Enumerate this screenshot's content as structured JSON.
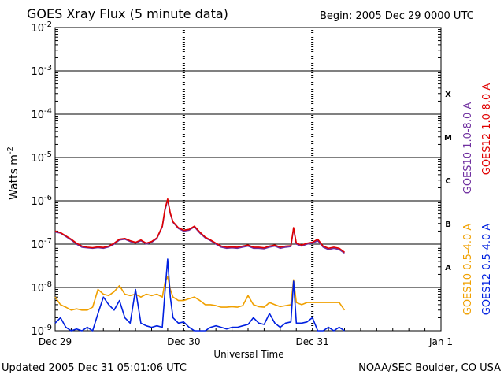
{
  "header": {
    "title": "GOES Xray Flux (5 minute data)",
    "begin": "Begin:  2005 Dec 29 0000 UTC"
  },
  "footer": {
    "updated": "Updated 2005 Dec 31 05:01:06 UTC",
    "credit": "NOAA/SEC Boulder, CO USA"
  },
  "colors": {
    "goes10_long": "#7030a0",
    "goes12_long": "#e00000",
    "goes10_short": "#f0a000",
    "goes12_short": "#0020e0",
    "grid": "#000000"
  },
  "chart_data": {
    "type": "line",
    "title": "GOES Xray Flux (5 minute data)",
    "xlabel": "Universal Time",
    "ylabel": "Watts m",
    "ylabel_sup": "-2",
    "y_scale": "log",
    "ylim": [
      1e-09,
      0.01
    ],
    "xlim": [
      0,
      72
    ],
    "x_unit": "hours since 2005 Dec 29 0000 UTC",
    "y_ticks": [
      {
        "value": 0.01,
        "exp": "-2"
      },
      {
        "value": 0.001,
        "exp": "-3"
      },
      {
        "value": 0.0001,
        "exp": "-4"
      },
      {
        "value": 1e-05,
        "exp": "-5"
      },
      {
        "value": 1e-06,
        "exp": "-6"
      },
      {
        "value": 1e-07,
        "exp": "-7"
      },
      {
        "value": 1e-08,
        "exp": "-8"
      },
      {
        "value": 1e-09,
        "exp": "-9"
      }
    ],
    "x_ticks": [
      {
        "x": 0,
        "label": "Dec 29"
      },
      {
        "x": 24,
        "label": "Dec 30"
      },
      {
        "x": 48,
        "label": "Dec 31"
      },
      {
        "x": 72,
        "label": "Jan 1"
      }
    ],
    "flare_classes": [
      {
        "label": "X",
        "value": 0.0003
      },
      {
        "label": "M",
        "value": 3e-05
      },
      {
        "label": "C",
        "value": 3e-06
      },
      {
        "label": "B",
        "value": 3e-07
      },
      {
        "label": "A",
        "value": 3e-08
      }
    ],
    "series": [
      {
        "name": "GOES10 1.0-8.0 A",
        "color": "#7030a0",
        "x": [
          0,
          1,
          2,
          3,
          4,
          5,
          6,
          7,
          8,
          9,
          10,
          11,
          12,
          13,
          14,
          15,
          16,
          17,
          18,
          19,
          20,
          20.5,
          21,
          21.5,
          22,
          23,
          24,
          25,
          26,
          27,
          28,
          29,
          30,
          31,
          32,
          33,
          34,
          35,
          36,
          37,
          38,
          39,
          40,
          41,
          42,
          43,
          44,
          44.5,
          45,
          46,
          47,
          48,
          49,
          50,
          51,
          52,
          53,
          54
        ],
        "y": [
          1.9e-07,
          1.8e-07,
          1.5e-07,
          1.25e-07,
          1e-07,
          8.5e-08,
          8.2e-08,
          8e-08,
          8.3e-08,
          8e-08,
          8.6e-08,
          1e-07,
          1.25e-07,
          1.3e-07,
          1.15e-07,
          1.05e-07,
          1.2e-07,
          1e-07,
          1.1e-07,
          1.35e-07,
          2.5e-07,
          6e-07,
          1.05e-06,
          5e-07,
          3.2e-07,
          2.3e-07,
          2e-07,
          2.1e-07,
          2.5e-07,
          1.8e-07,
          1.4e-07,
          1.2e-07,
          1e-07,
          8.5e-08,
          8e-08,
          8.2e-08,
          8e-08,
          8.5e-08,
          9e-08,
          8e-08,
          8e-08,
          7.8e-08,
          8.5e-08,
          9e-08,
          8e-08,
          8.5e-08,
          8.8e-08,
          2.3e-07,
          1e-07,
          9e-08,
          1e-07,
          1.05e-07,
          1.2e-07,
          8.5e-08,
          7.5e-08,
          8e-08,
          7.5e-08,
          6.2e-08
        ]
      },
      {
        "name": "GOES12 1.0-8.0 A",
        "color": "#e00000",
        "x": [
          0,
          1,
          2,
          3,
          4,
          5,
          6,
          7,
          8,
          9,
          10,
          11,
          12,
          13,
          14,
          15,
          16,
          17,
          18,
          19,
          20,
          20.5,
          21,
          21.5,
          22,
          23,
          24,
          25,
          26,
          27,
          28,
          29,
          30,
          31,
          32,
          33,
          34,
          35,
          36,
          37,
          38,
          39,
          40,
          41,
          42,
          43,
          44,
          44.5,
          45,
          46,
          47,
          48,
          49,
          50,
          51,
          52,
          53,
          54
        ],
        "y": [
          2e-07,
          1.85e-07,
          1.55e-07,
          1.3e-07,
          1.05e-07,
          9e-08,
          8.5e-08,
          8.3e-08,
          8.6e-08,
          8.4e-08,
          9e-08,
          1.05e-07,
          1.3e-07,
          1.35e-07,
          1.2e-07,
          1.1e-07,
          1.25e-07,
          1.05e-07,
          1.15e-07,
          1.4e-07,
          2.6e-07,
          6.5e-07,
          1.1e-06,
          5.2e-07,
          3.3e-07,
          2.4e-07,
          2.1e-07,
          2.2e-07,
          2.6e-07,
          1.9e-07,
          1.45e-07,
          1.25e-07,
          1.05e-07,
          9e-08,
          8.5e-08,
          8.6e-08,
          8.5e-08,
          9e-08,
          9.5e-08,
          8.5e-08,
          8.5e-08,
          8.2e-08,
          9e-08,
          9.5e-08,
          8.5e-08,
          9e-08,
          9.2e-08,
          2.4e-07,
          1.05e-07,
          9.5e-08,
          1.05e-07,
          1.1e-07,
          1.3e-07,
          9e-08,
          8e-08,
          8.5e-08,
          8e-08,
          6.5e-08
        ]
      },
      {
        "name": "GOES10 0.5-4.0 A",
        "color": "#f0a000",
        "x": [
          0,
          1,
          2,
          3,
          4,
          5,
          6,
          7,
          8,
          9,
          10,
          11,
          12,
          13,
          14,
          15,
          16,
          17,
          18,
          19,
          20,
          20.5,
          21,
          21.5,
          22,
          23,
          24,
          25,
          26,
          27,
          28,
          29,
          30,
          31,
          32,
          33,
          34,
          35,
          36,
          37,
          38,
          39,
          40,
          41,
          42,
          43,
          44,
          44.5,
          45,
          46,
          47,
          48,
          49,
          50,
          51,
          52,
          53,
          54
        ],
        "y": [
          6e-09,
          4e-09,
          3.5e-09,
          3e-09,
          3.2e-09,
          3e-09,
          3e-09,
          3.5e-09,
          9e-09,
          7e-09,
          6.5e-09,
          8e-09,
          1.1e-08,
          7e-09,
          6.5e-09,
          7e-09,
          6e-09,
          7e-09,
          6.5e-09,
          7e-09,
          6e-09,
          1.3e-08,
          1.8e-08,
          9e-09,
          6e-09,
          5e-09,
          5e-09,
          5.5e-09,
          6e-09,
          5e-09,
          4e-09,
          4e-09,
          3.8e-09,
          3.5e-09,
          3.5e-09,
          3.6e-09,
          3.5e-09,
          3.8e-09,
          6.5e-09,
          4e-09,
          3.6e-09,
          3.5e-09,
          4.5e-09,
          4e-09,
          3.6e-09,
          3.8e-09,
          4e-09,
          1.5e-08,
          4.5e-09,
          4e-09,
          4.5e-09,
          4.5e-09,
          4.5e-09,
          4.5e-09,
          4.5e-09,
          4.5e-09,
          4.5e-09,
          3e-09
        ]
      },
      {
        "name": "GOES12 0.5-4.0 A",
        "color": "#0020e0",
        "x": [
          0,
          1,
          2,
          3,
          4,
          5,
          6,
          7,
          8,
          9,
          10,
          11,
          12,
          13,
          14,
          15,
          16,
          17,
          18,
          19,
          20,
          20.5,
          21,
          21.5,
          22,
          23,
          24,
          25,
          26,
          27,
          28,
          29,
          30,
          31,
          32,
          33,
          34,
          35,
          36,
          37,
          38,
          39,
          40,
          41,
          42,
          43,
          44,
          44.5,
          45,
          46,
          47,
          48,
          49,
          50,
          51,
          52,
          53,
          54
        ],
        "y": [
          1.5e-09,
          2e-09,
          1.2e-09,
          1e-09,
          1.1e-09,
          1e-09,
          1.2e-09,
          1e-09,
          2.5e-09,
          6e-09,
          4e-09,
          3e-09,
          5e-09,
          2e-09,
          1.5e-09,
          9e-09,
          1.5e-09,
          1.3e-09,
          1.2e-09,
          1.3e-09,
          1.2e-09,
          8e-09,
          4.5e-08,
          6e-09,
          2e-09,
          1.5e-09,
          1.6e-09,
          1.2e-09,
          1e-09,
          1e-09,
          1e-09,
          1.2e-09,
          1.3e-09,
          1.2e-09,
          1.1e-09,
          1.2e-09,
          1.2e-09,
          1.3e-09,
          1.4e-09,
          2e-09,
          1.5e-09,
          1.4e-09,
          2.5e-09,
          1.5e-09,
          1.2e-09,
          1.5e-09,
          1.6e-09,
          1.4e-08,
          1.5e-09,
          1.5e-09,
          1.6e-09,
          2e-09,
          1e-09,
          1e-09,
          1.2e-09,
          1e-09,
          1.2e-09,
          1e-09
        ]
      }
    ]
  }
}
